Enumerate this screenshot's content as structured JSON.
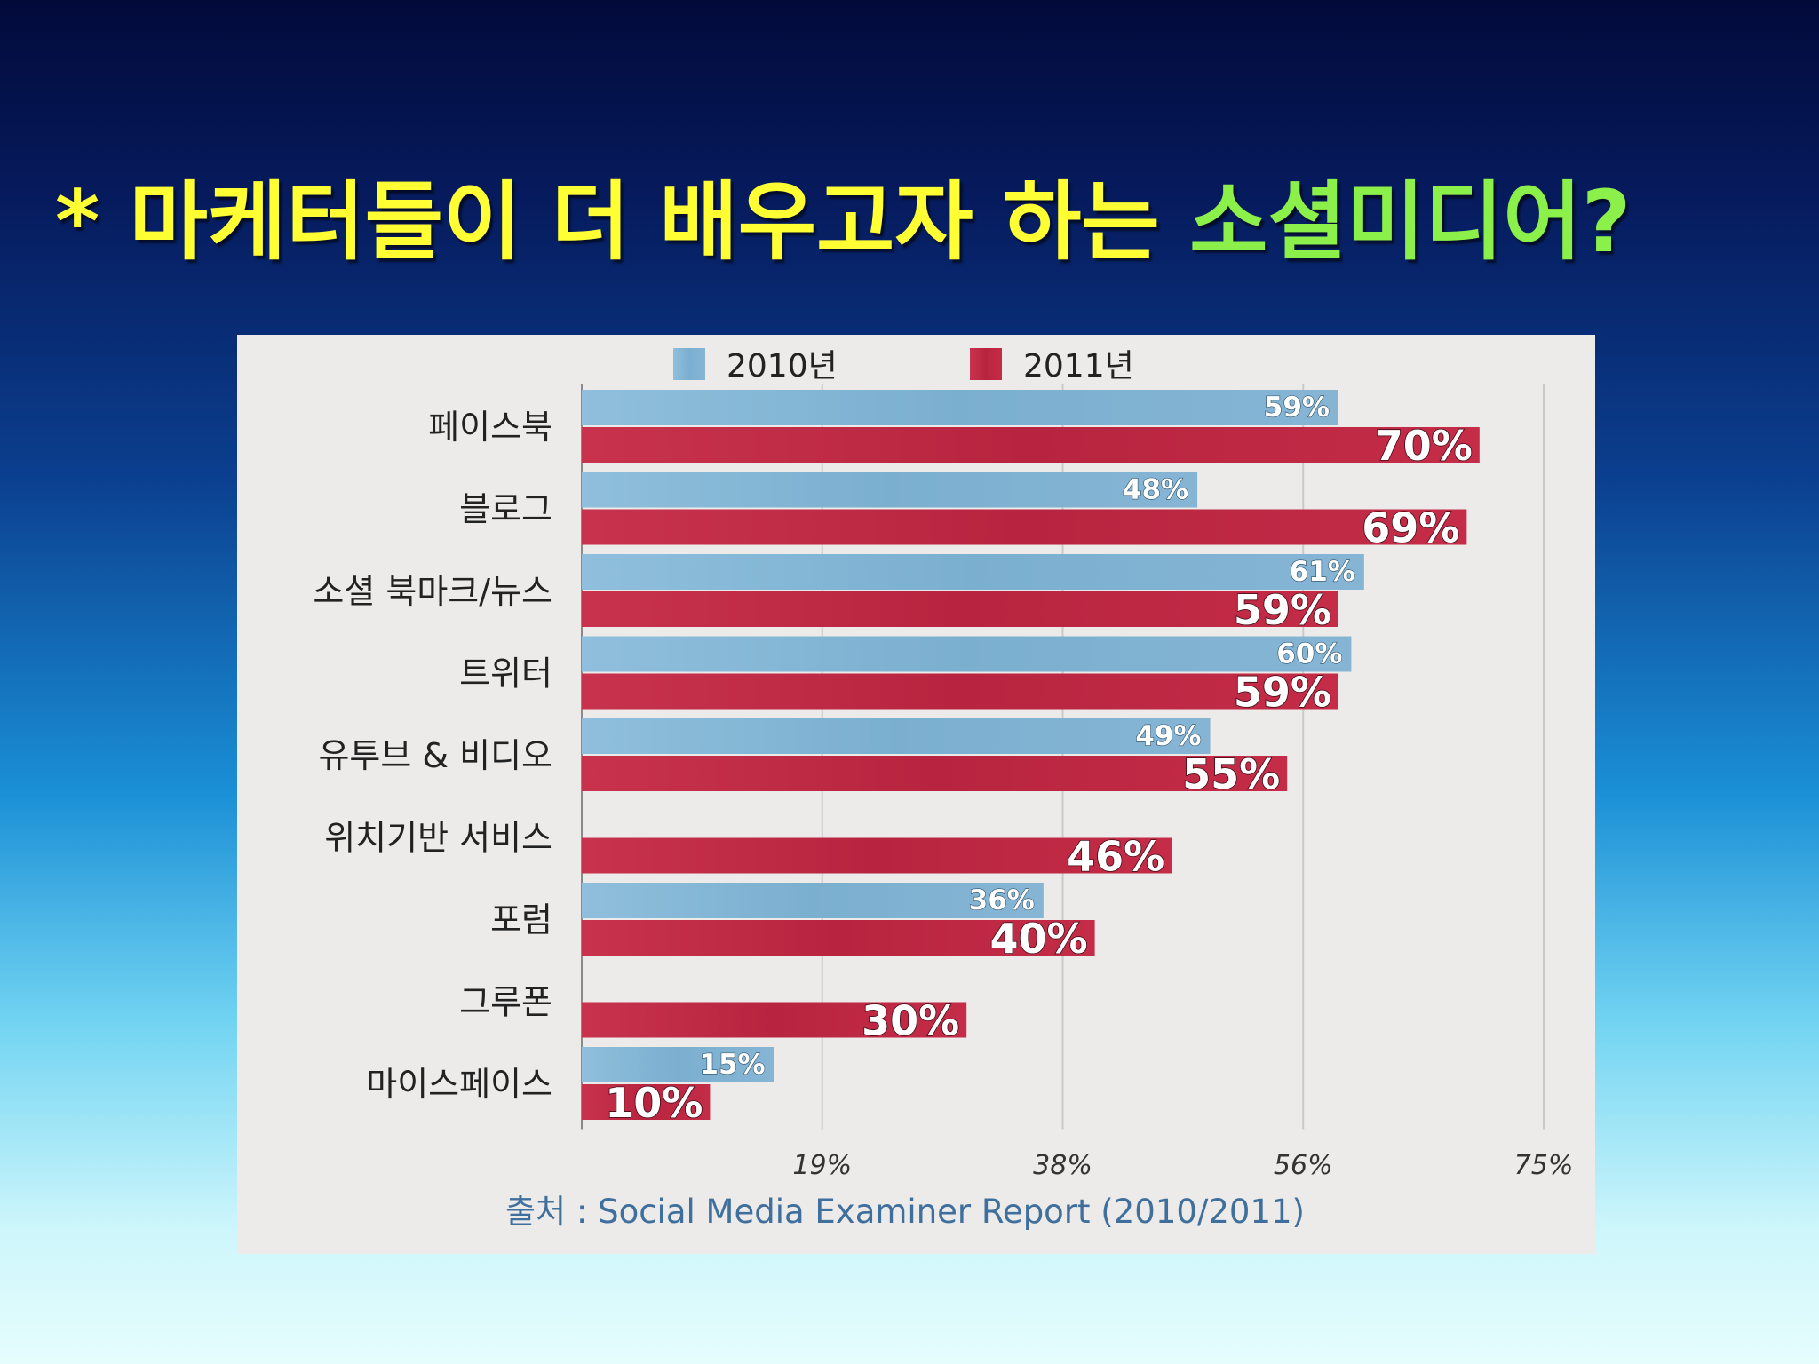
{
  "slide": {
    "title_prefix": "* 마케터들이 더 배우고자 하는 ",
    "title_highlight": "소셜미디어?",
    "colors": {
      "prefix": "#ffff33",
      "highlight": "#8cf04a"
    }
  },
  "chart_data": {
    "type": "bar",
    "orientation": "horizontal",
    "categories": [
      "페이스북",
      "블로그",
      "소셜 북마크/뉴스",
      "트위터",
      "유투브 & 비디오",
      "위치기반 서비스",
      "포럼",
      "그루폰",
      "마이스페이스"
    ],
    "series": [
      {
        "name": "2010년",
        "color": "#7fb0cf",
        "values": [
          59,
          48,
          61,
          60,
          49,
          null,
          36,
          null,
          15
        ]
      },
      {
        "name": "2011년",
        "color": "#c02a46",
        "values": [
          70,
          69,
          59,
          59,
          55,
          46,
          40,
          30,
          10
        ]
      }
    ],
    "value_labels": {
      "2010년": [
        "59%",
        "48%",
        "61%",
        "60%",
        "49%",
        "",
        "36%",
        "",
        "15%"
      ],
      "2011년": [
        "70%",
        "69%",
        "59%",
        "59%",
        "55%",
        "46%",
        "40%",
        "30%",
        "10%"
      ]
    },
    "x_ticks": [
      "19%",
      "38%",
      "56%",
      "75%"
    ],
    "xlim": [
      0,
      75
    ],
    "legend_position": "top",
    "grid": true,
    "source": "출처 : Social Media Examiner Report (2010/2011)"
  }
}
